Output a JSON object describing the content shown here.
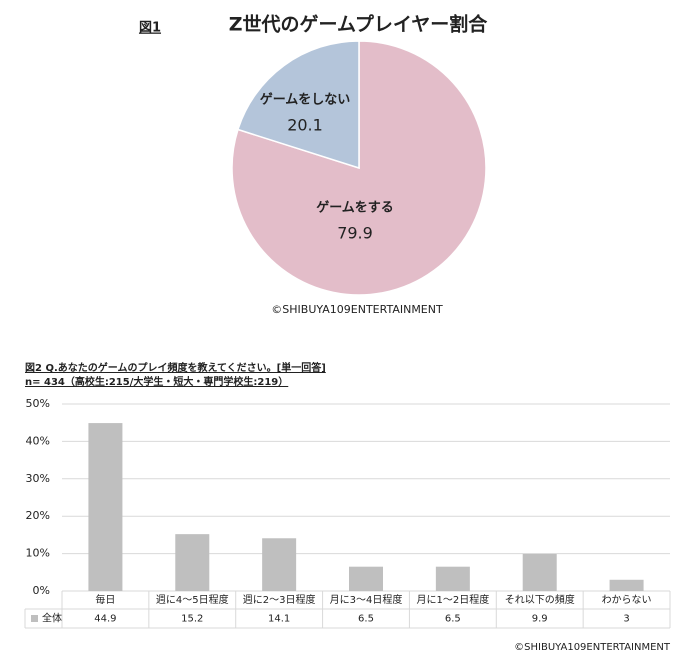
{
  "chart_data": [
    {
      "type": "pie",
      "figure_label": "図1",
      "title": "Z世代のゲームプレイヤー割合",
      "categories": [
        "ゲームをする",
        "ゲームをしない"
      ],
      "values": [
        79.9,
        20.1
      ],
      "colors": [
        "#e3bdc9",
        "#b4c5da"
      ],
      "credit": "©SHIBUYA109ENTERTAINMENT"
    },
    {
      "type": "bar",
      "title": "図2 Q.あなたのゲームのプレイ頻度を教えてください。[単一回答]",
      "subtitle": "n= 434（高校生:215/大学生・短大・専門学校生:219）",
      "categories": [
        "毎日",
        "週に4～5日程度",
        "週に2～3日程度",
        "月に3～4日程度",
        "月に1～2日程度",
        "それ以下の頻度",
        "わからない"
      ],
      "series": [
        {
          "name": "全体",
          "color": "#bfbfbf",
          "values": [
            44.9,
            15.2,
            14.1,
            6.5,
            6.5,
            9.9,
            3.0
          ]
        }
      ],
      "ylim": [
        0,
        50
      ],
      "yticks": [
        {
          "value": 0,
          "label": "0%"
        },
        {
          "value": 10,
          "label": "10%"
        },
        {
          "value": 20,
          "label": "20%"
        },
        {
          "value": 30,
          "label": "30%"
        },
        {
          "value": 40,
          "label": "40%"
        },
        {
          "value": 50,
          "label": "50%"
        }
      ],
      "grid": true,
      "credit": "©SHIBUYA109ENTERTAINMENT"
    }
  ]
}
